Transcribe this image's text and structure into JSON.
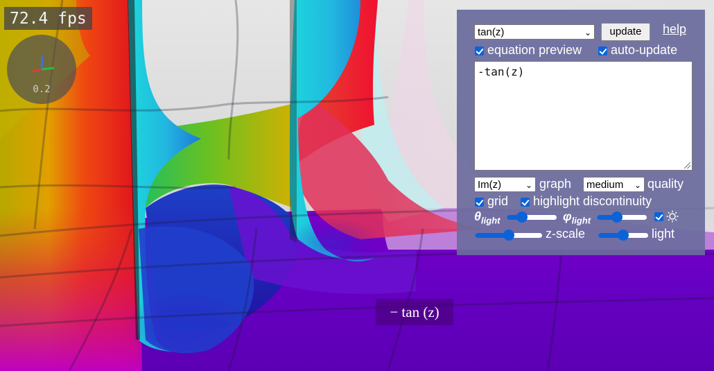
{
  "fps": "72.4 fps",
  "gizmo": {
    "scale": "0.2"
  },
  "panel": {
    "function_select": {
      "selected": "tan(z)"
    },
    "update_button": "update",
    "help_link": "help",
    "equation_preview": {
      "checked": true,
      "label": "equation preview"
    },
    "auto_update": {
      "checked": true,
      "label": "auto-update"
    },
    "expression": "-tan(z)",
    "graph_select": {
      "selected": "Im(z)"
    },
    "graph_label": "graph",
    "quality_select": {
      "selected": "medium"
    },
    "quality_label": "quality",
    "grid": {
      "checked": true,
      "label": "grid"
    },
    "highlight_discontinuity": {
      "checked": true,
      "label": "highlight discontinuity"
    },
    "theta_light": {
      "symbol": "θ",
      "subscript": "light",
      "value": 0.3
    },
    "phi_light": {
      "symbol": "φ",
      "subscript": "light",
      "value": 0.4
    },
    "sun_toggle": {
      "checked": true,
      "icon": "sun-icon"
    },
    "z_scale": {
      "label": "z-scale",
      "value": 0.5
    },
    "light": {
      "label": "light",
      "value": 0.5
    }
  },
  "equation_overlay": "− tan (z)",
  "colors": {
    "panel": "#6c6c9e",
    "accent": "#0b63d9"
  }
}
